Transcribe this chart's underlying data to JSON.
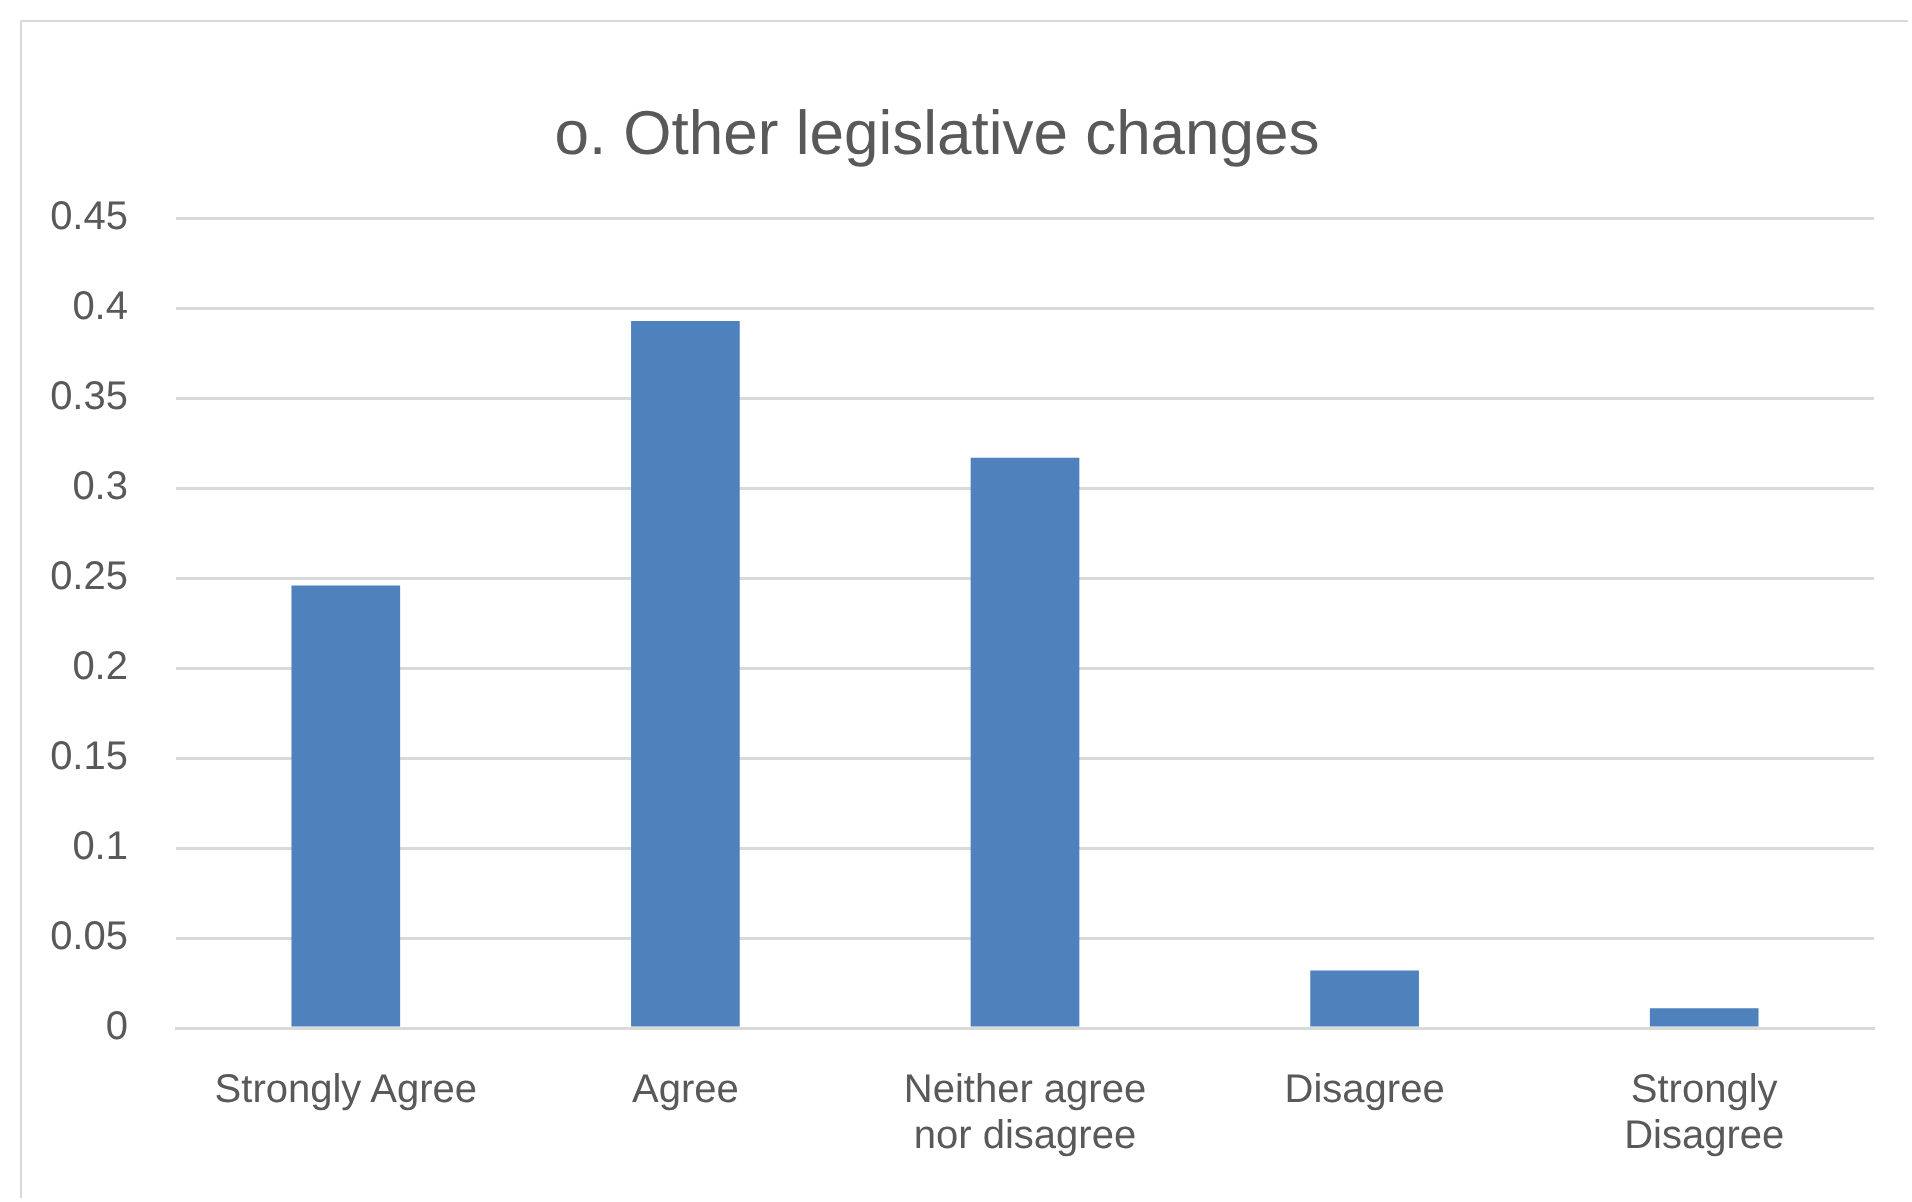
{
  "chart_data": {
    "type": "bar",
    "title": "o. Other legislative changes",
    "categories": [
      "Strongly Agree",
      "Agree",
      "Neither agree nor disagree",
      "Disagree",
      "Strongly Disagree"
    ],
    "values": [
      0.246,
      0.393,
      0.317,
      0.032,
      0.011
    ],
    "color": "#4f81bd",
    "ylim": [
      0,
      0.45
    ],
    "yticks": [
      0,
      0.05,
      0.1,
      0.15,
      0.2,
      0.25,
      0.3,
      0.35,
      0.4,
      0.45
    ],
    "grid": "y",
    "legend": false
  }
}
